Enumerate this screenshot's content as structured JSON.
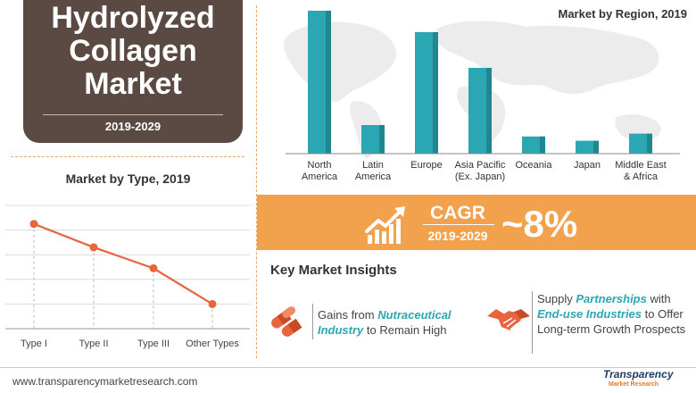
{
  "header": {
    "title_line1": "Hydrolyzed",
    "title_line2": "Collagen",
    "title_line3": "Market",
    "years": "2019-2029"
  },
  "colors": {
    "title_bg": "#5b4a44",
    "accent_orange": "#f2a14c",
    "line_orange": "#e8643c",
    "bar_teal": "#2aa7b2",
    "highlight_teal": "#2aa7b2"
  },
  "chart_data": [
    {
      "type": "line",
      "title": "Market by Type, 2019",
      "categories": [
        "Type I",
        "Type II",
        "Type III",
        "Other Types"
      ],
      "values": [
        85,
        66,
        49,
        20
      ],
      "ylim": [
        0,
        100
      ],
      "grid": true,
      "axis_values_shown": false
    },
    {
      "type": "bar",
      "title": "Market by Region, 2019",
      "categories": [
        [
          "North",
          "America"
        ],
        [
          "Latin",
          "America"
        ],
        [
          "Europe"
        ],
        [
          "Asia Pacific",
          "(Ex. Japan)"
        ],
        [
          "Oceania"
        ],
        [
          "Japan"
        ],
        [
          "Middle East",
          "& Africa"
        ]
      ],
      "values": [
        100,
        20,
        85,
        60,
        12,
        9,
        14
      ],
      "ylim": [
        0,
        100
      ],
      "axis_values_shown": false
    }
  ],
  "cagr": {
    "label": "CAGR",
    "years": "2019-2029",
    "value": "~8%",
    "icon": "growth-chart-icon"
  },
  "insights": {
    "title": "Key Market Insights",
    "items": [
      {
        "icon": "capsules-icon",
        "pre": "Gains from ",
        "highlight": "Nutraceutical Industry",
        "post": " to Remain High"
      },
      {
        "icon": "handshake-icon",
        "pre": "Supply ",
        "highlight": "Partnerships",
        "mid": " with ",
        "highlight2": "End-use Industries",
        "post": " to Offer Long-term Growth Prospects"
      }
    ]
  },
  "footer": {
    "url": "www.transparencymarketresearch.com",
    "logo_main": "Transparency",
    "logo_sub": "Market Research"
  }
}
